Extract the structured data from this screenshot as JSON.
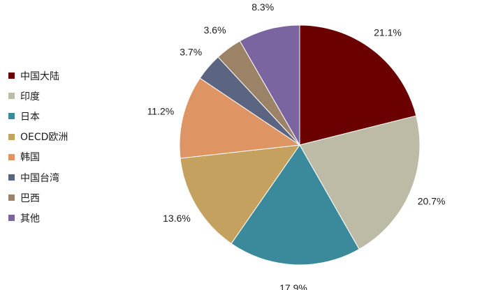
{
  "chart_data": {
    "type": "pie",
    "title": "",
    "start": "12 o'clock",
    "direction": "clockwise",
    "legend_position": "left",
    "slices": [
      {
        "label": "中国大陆",
        "value": 21.1,
        "value_label": "21.1%",
        "color": "#6b0000"
      },
      {
        "label": "印度",
        "value": 20.7,
        "value_label": "20.7%",
        "color": "#bdbaa6"
      },
      {
        "label": "日本",
        "value": 17.9,
        "value_label": "17.9%",
        "color": "#3b8a9c"
      },
      {
        "label": "OECD欧洲",
        "value": 13.6,
        "value_label": "13.6%",
        "color": "#c4a15e"
      },
      {
        "label": "韩国",
        "value": 11.2,
        "value_label": "11.2%",
        "color": "#de9463"
      },
      {
        "label": "中国台湾",
        "value": 3.7,
        "value_label": "3.7%",
        "color": "#5b6480"
      },
      {
        "label": "巴西",
        "value": 3.6,
        "value_label": "3.6%",
        "color": "#9c8368"
      },
      {
        "label": "其他",
        "value": 8.3,
        "value_label": "8.3%",
        "color": "#7b65a0"
      }
    ]
  }
}
